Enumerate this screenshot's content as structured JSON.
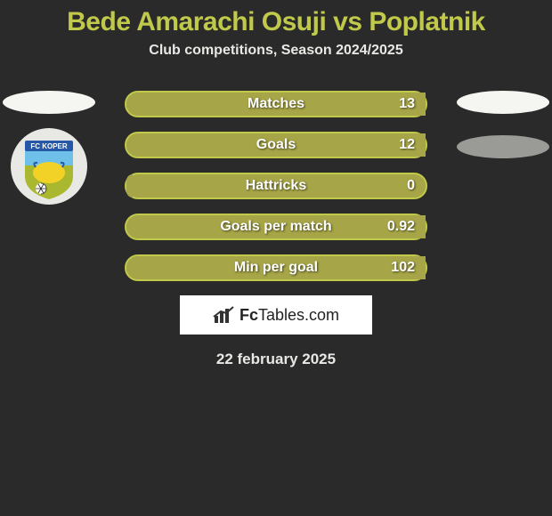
{
  "title": {
    "text": "Bede Amarachi Osuji vs Poplatnik",
    "color": "#c0c94a",
    "fontsize": 30
  },
  "subtitle": {
    "text": "Club competitions, Season 2024/2025",
    "color": "#e8e8e5",
    "fontsize": 16
  },
  "left_player": {
    "avatar_ellipse_color": "#f5f5f2",
    "club_badge": {
      "bg": "#e8e8e5",
      "shield_top": "#6fc0e8",
      "shield_bottom": "#aab82f",
      "banner_color": "#2558a6",
      "banner_text": "FC KOPER",
      "bull_color": "#f3d227",
      "bull_outline": "#2558a6"
    }
  },
  "right_player": {
    "avatar_ellipse_color": "#f5f5f2",
    "club_ellipse_color": "#9a9a97"
  },
  "bars": {
    "track_color": "#a6a547",
    "border_color": "#c0c94a",
    "label_fontsize": 16,
    "value_fontsize": 16,
    "rows": [
      {
        "label": "Matches",
        "value": "13",
        "left_fill_pct": 100
      },
      {
        "label": "Goals",
        "value": "12",
        "left_fill_pct": 100
      },
      {
        "label": "Hattricks",
        "value": "0",
        "left_fill_pct": 2
      },
      {
        "label": "Goals per match",
        "value": "0.92",
        "left_fill_pct": 100
      },
      {
        "label": "Min per goal",
        "value": "102",
        "left_fill_pct": 100
      }
    ]
  },
  "footer": {
    "logo_text_prefix": "Fc",
    "logo_text_suffix": "Tables.com",
    "date": "22 february 2025",
    "date_color": "#e8e8e5",
    "date_fontsize": 17
  },
  "colors": {
    "page_bg": "#2a2a2a"
  }
}
